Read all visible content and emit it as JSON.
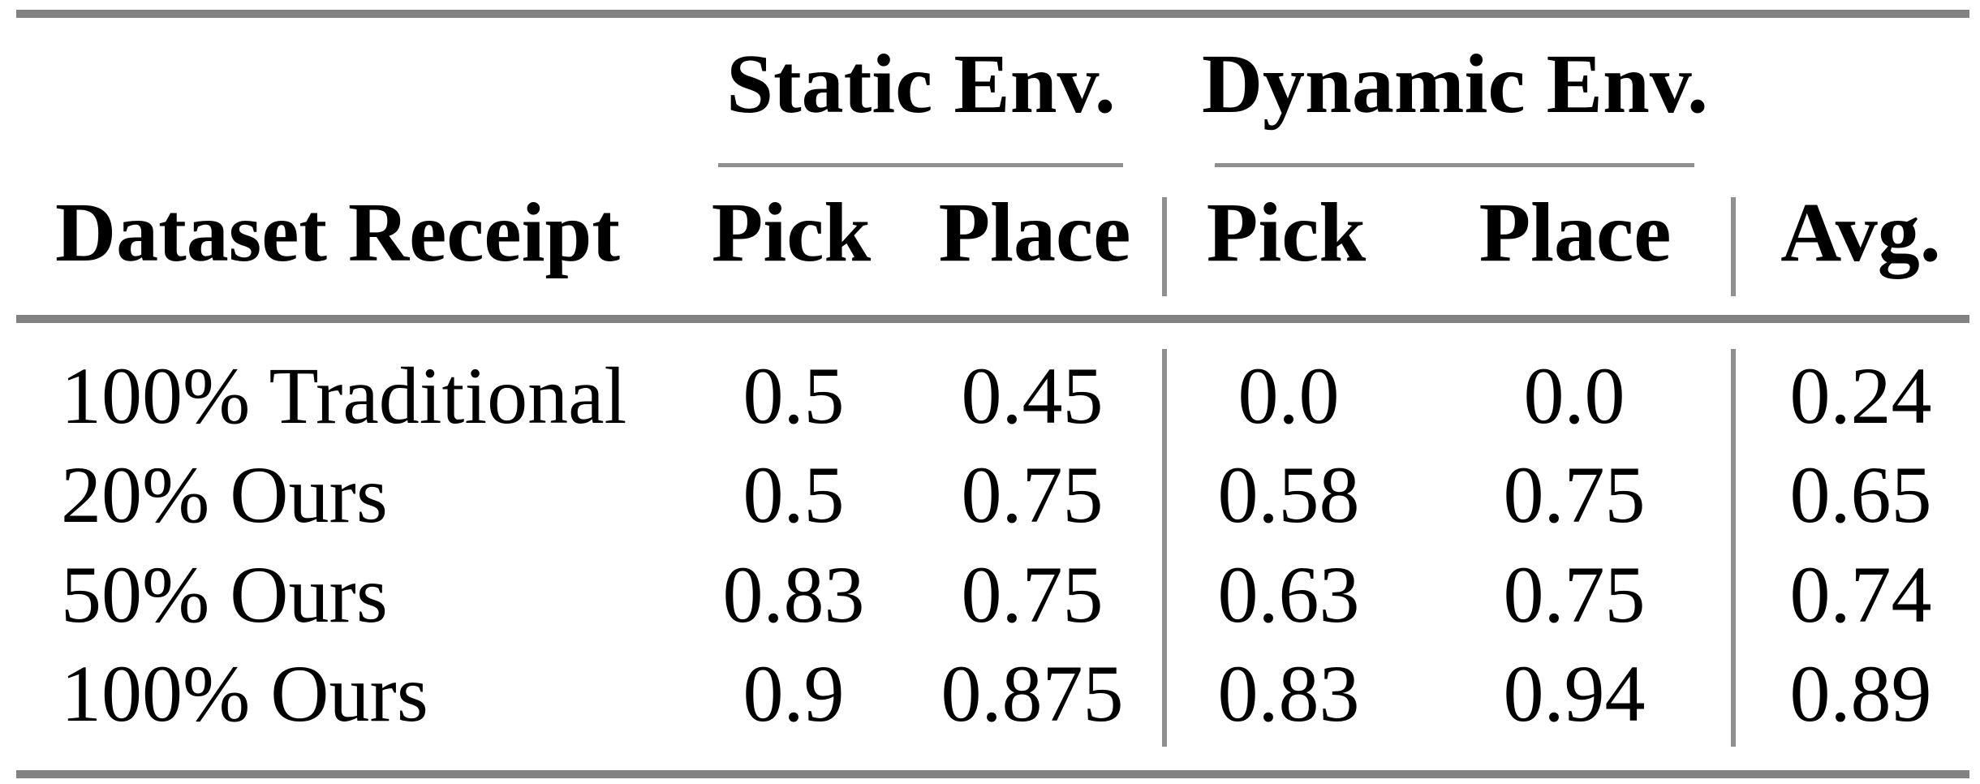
{
  "table": {
    "group_headers": {
      "static": "Static Env.",
      "dynamic": "Dynamic Env."
    },
    "column_headers": {
      "row_header": "Dataset Receipt",
      "static_pick": "Pick",
      "static_place": "Place",
      "dynamic_pick": "Pick",
      "dynamic_place": "Place",
      "avg": "Avg."
    },
    "rows": [
      {
        "label": "100% Traditional",
        "static_pick": "0.5",
        "static_place": "0.45",
        "dynamic_pick": "0.0",
        "dynamic_place": "0.0",
        "avg": "0.24"
      },
      {
        "label": "20% Ours",
        "static_pick": "0.5",
        "static_place": "0.75",
        "dynamic_pick": "0.58",
        "dynamic_place": "0.75",
        "avg": "0.65"
      },
      {
        "label": "50% Ours",
        "static_pick": "0.83",
        "static_place": "0.75",
        "dynamic_pick": "0.63",
        "dynamic_place": "0.75",
        "avg": "0.74"
      },
      {
        "label": "100% Ours",
        "static_pick": "0.9",
        "static_place": "0.875",
        "dynamic_pick": "0.83",
        "dynamic_place": "0.94",
        "avg": "0.89"
      }
    ],
    "colors": {
      "heavy_rule": "#828282",
      "thin_rule": "#8f8f8f",
      "text": "#000000",
      "background": "#ffffff"
    }
  },
  "chart_data": {
    "type": "table",
    "column_groups": [
      "",
      "Static Env.",
      "Static Env.",
      "Dynamic Env.",
      "Dynamic Env.",
      ""
    ],
    "columns": [
      "Dataset Receipt",
      "Pick",
      "Place",
      "Pick",
      "Place",
      "Avg."
    ],
    "rows": [
      [
        "100% Traditional",
        0.5,
        0.45,
        0.0,
        0.0,
        0.24
      ],
      [
        "20% Ours",
        0.5,
        0.75,
        0.58,
        0.75,
        0.65
      ],
      [
        "50% Ours",
        0.83,
        0.75,
        0.63,
        0.75,
        0.74
      ],
      [
        "100% Ours",
        0.9,
        0.875,
        0.83,
        0.94,
        0.89
      ]
    ]
  }
}
